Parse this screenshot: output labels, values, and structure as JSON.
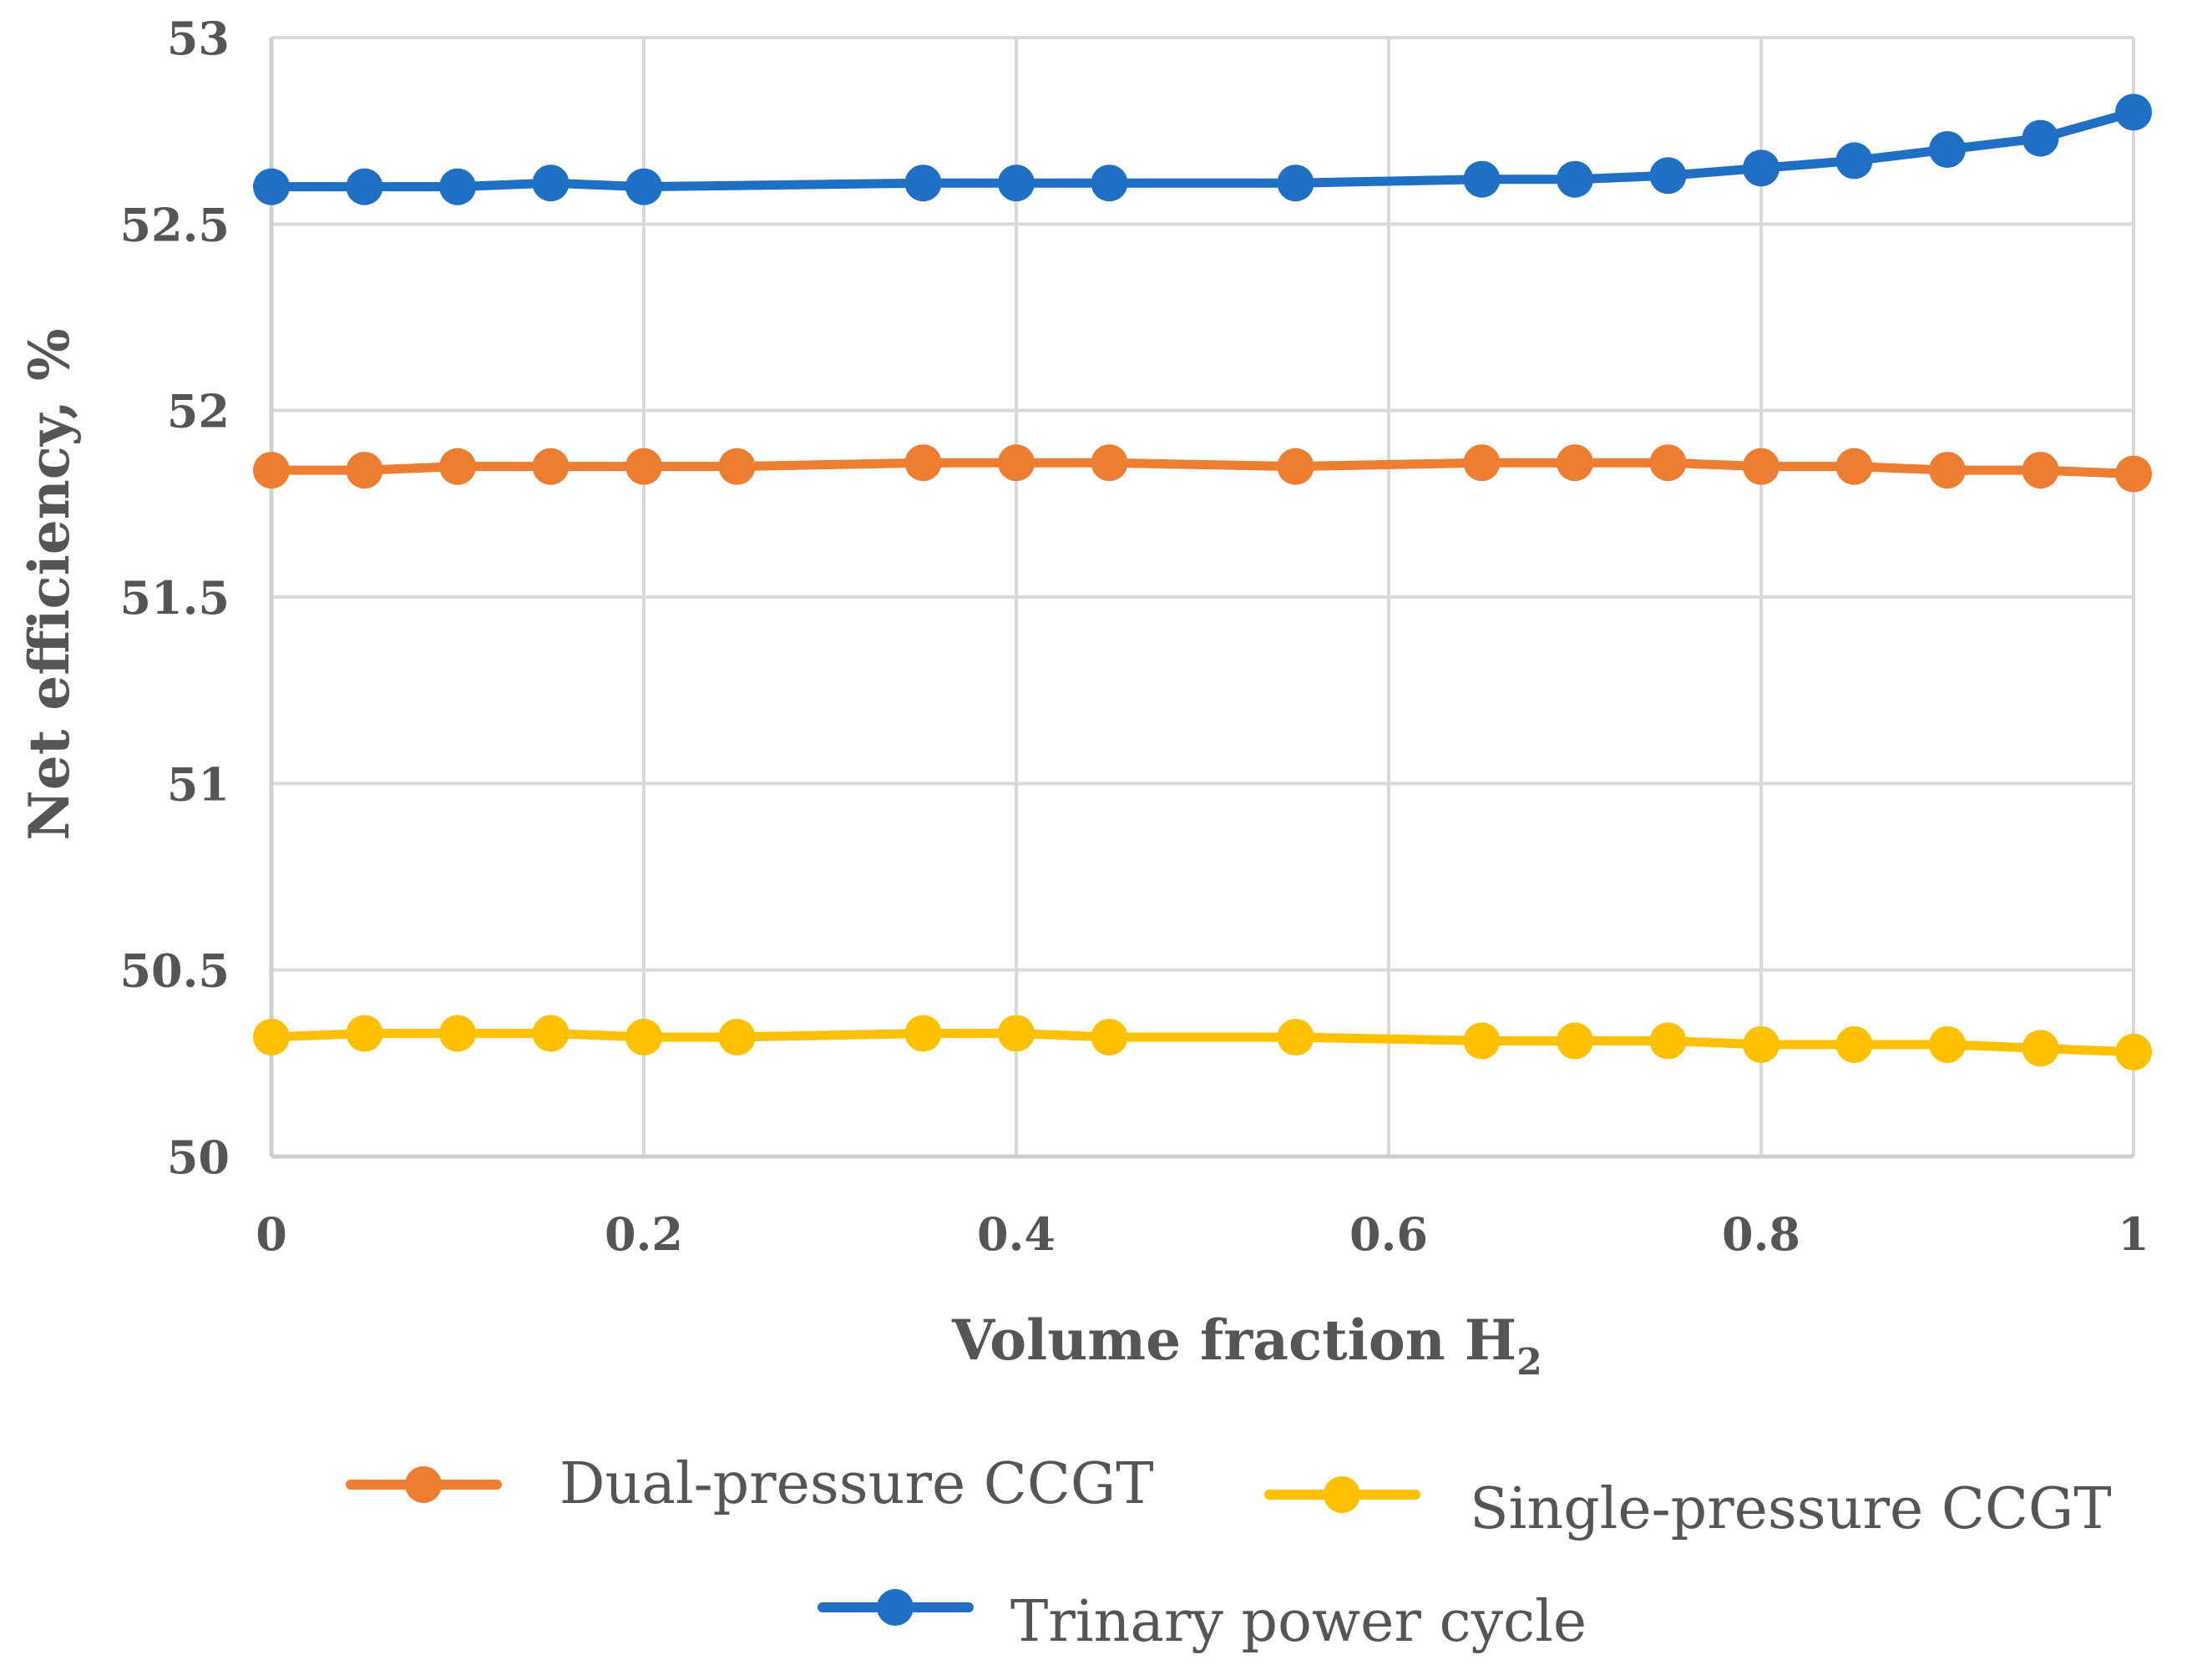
{
  "chart_data": {
    "type": "line",
    "xlabel": "Volume fraction H",
    "xlabel_subscript": "2",
    "ylabel": "Net efficiency, %",
    "xlim": [
      0,
      1
    ],
    "ylim": [
      50,
      53
    ],
    "x_ticks": [
      "0",
      "0.2",
      "0.4",
      "0.6",
      "0.8",
      "1"
    ],
    "y_ticks": [
      "50",
      "50.5",
      "51",
      "51.5",
      "52",
      "52.5",
      "53"
    ],
    "grid": true,
    "legend_position": "bottom",
    "series": [
      {
        "name": "Dual-pressure CCGT",
        "color": "#ED7D31",
        "x": [
          0,
          0.05,
          0.1,
          0.15,
          0.2,
          0.25,
          0.35,
          0.4,
          0.45,
          0.55,
          0.65,
          0.7,
          0.75,
          0.8,
          0.85,
          0.9,
          0.95,
          1
        ],
        "y": [
          51.84,
          51.84,
          51.85,
          51.85,
          51.85,
          51.85,
          51.86,
          51.86,
          51.86,
          51.85,
          51.86,
          51.86,
          51.86,
          51.85,
          51.85,
          51.84,
          51.84,
          51.83
        ]
      },
      {
        "name": "Single-pressure CCGT",
        "color": "#FFC000",
        "x": [
          0,
          0.05,
          0.1,
          0.15,
          0.2,
          0.25,
          0.35,
          0.4,
          0.45,
          0.55,
          0.65,
          0.7,
          0.75,
          0.8,
          0.85,
          0.9,
          0.95,
          1
        ],
        "y": [
          50.32,
          50.33,
          50.33,
          50.33,
          50.32,
          50.32,
          50.33,
          50.33,
          50.32,
          50.32,
          50.31,
          50.31,
          50.31,
          50.3,
          50.3,
          50.3,
          50.29,
          50.28
        ]
      },
      {
        "name": "Trinary power cycle",
        "color": "#1F6FC5",
        "x": [
          0,
          0.05,
          0.1,
          0.15,
          0.2,
          0.35,
          0.4,
          0.45,
          0.55,
          0.65,
          0.7,
          0.75,
          0.8,
          0.85,
          0.9,
          0.95,
          1
        ],
        "y": [
          52.6,
          52.6,
          52.6,
          52.61,
          52.6,
          52.61,
          52.61,
          52.61,
          52.61,
          52.62,
          52.62,
          52.63,
          52.65,
          52.67,
          52.7,
          52.73,
          52.8
        ]
      }
    ],
    "legend": [
      {
        "name": "Dual-pressure CCGT",
        "color": "#ED7D31"
      },
      {
        "name": "Single-pressure CCGT",
        "color": "#FFC000"
      },
      {
        "name": "Trinary power cycle",
        "color": "#1F6FC5"
      }
    ]
  }
}
